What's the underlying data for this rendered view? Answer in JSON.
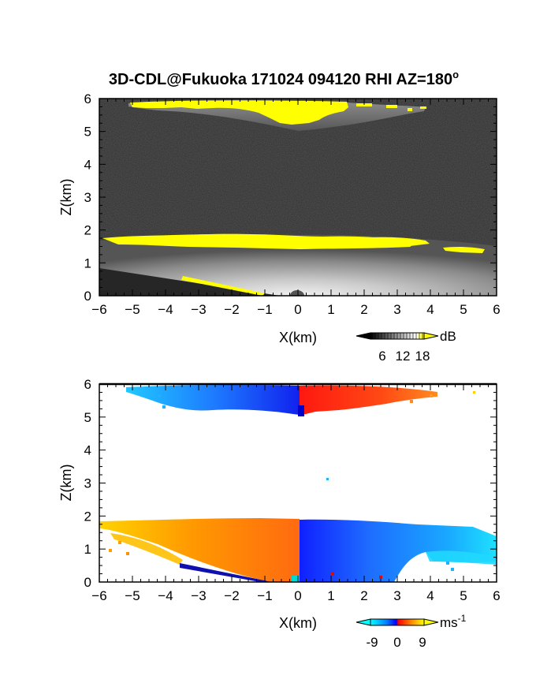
{
  "title": "3D-CDL@Fukuoka 171024 094120 RHI AZ=180",
  "title_superscript": "o",
  "chart_data": [
    {
      "type": "heatmap",
      "name": "reflectivity",
      "xlabel": "X(km)",
      "ylabel": "Z(km)",
      "xlim": [
        -6,
        6
      ],
      "ylim": [
        0,
        6
      ],
      "xticks": [
        "-6",
        "-5",
        "-4",
        "-3",
        "-2",
        "-1",
        "0",
        "1",
        "2",
        "3",
        "4",
        "5",
        "6"
      ],
      "yticks": [
        "0",
        "1",
        "2",
        "3",
        "4",
        "5",
        "6"
      ],
      "colorbar": {
        "unit": "dB",
        "ticks": [
          "6",
          "12",
          "18"
        ],
        "colors": [
          "#000000",
          "#ffffff",
          "#ffff00"
        ]
      },
      "colors": {
        "background_noise": "#2b2b2b",
        "cloud": "#ffff00",
        "aerosol_bright": "#e6e6e6"
      },
      "layers": [
        {
          "feature": "upper cloud layer",
          "x_range": [
            -5.1,
            4.8
          ],
          "z_range": [
            5.05,
            5.85
          ]
        },
        {
          "feature": "boundary layer top",
          "x_range": [
            -6,
            6
          ],
          "z_range": [
            1.3,
            1.9
          ]
        },
        {
          "feature": "boundary layer aerosol",
          "x_range": [
            -6,
            6
          ],
          "z_range": [
            0,
            1.6
          ]
        }
      ]
    },
    {
      "type": "heatmap",
      "name": "doppler velocity",
      "xlabel": "X(km)",
      "ylabel": "Z(km)",
      "xlim": [
        -6,
        6
      ],
      "ylim": [
        0,
        6
      ],
      "xticks": [
        "-6",
        "-5",
        "-4",
        "-3",
        "-2",
        "-1",
        "0",
        "1",
        "2",
        "3",
        "4",
        "5",
        "6"
      ],
      "yticks": [
        "0",
        "1",
        "2",
        "3",
        "4",
        "5",
        "6"
      ],
      "colorbar": {
        "unit": "ms",
        "unit_superscript": "-1",
        "ticks": [
          "-9",
          "0",
          "9"
        ],
        "range": [
          -12,
          12
        ],
        "colors": [
          "#00ffff",
          "#0000ff",
          "#ff0000",
          "#ffff00"
        ]
      },
      "layers": [
        {
          "feature": "upper cloud, left",
          "x_range": [
            -5.1,
            0.0
          ],
          "z_range": [
            5.1,
            5.85
          ],
          "velocity": -6
        },
        {
          "feature": "upper cloud, right",
          "x_range": [
            0.0,
            4.2
          ],
          "z_range": [
            5.1,
            5.85
          ],
          "velocity": 6
        },
        {
          "feature": "boundary layer, left",
          "x_range": [
            -6,
            0.0
          ],
          "z_range": [
            0,
            1.9
          ],
          "velocity": 7
        },
        {
          "feature": "boundary layer, right",
          "x_range": [
            0.0,
            6
          ],
          "z_range": [
            0,
            1.85
          ],
          "velocity": -6
        }
      ]
    }
  ]
}
